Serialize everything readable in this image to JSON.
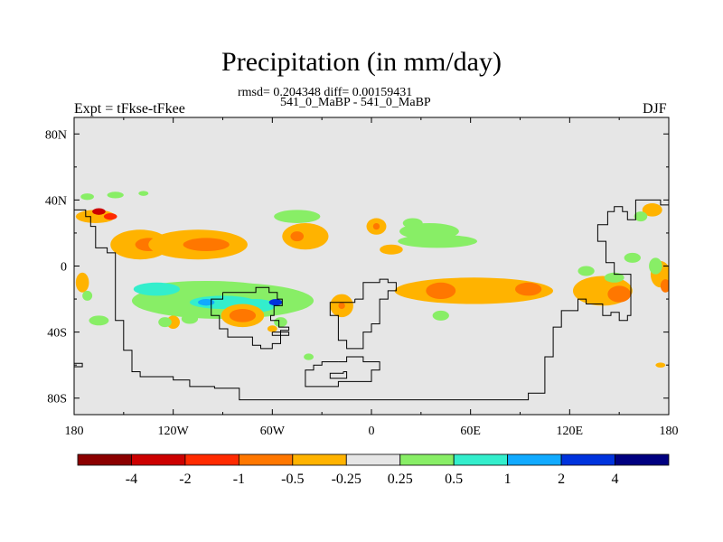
{
  "header": {
    "title": "Precipitation (in mm/day)",
    "subtitle_line1": "rmsd= 0.204348 diff= 0.00159431",
    "subtitle_line2": "541_0_MaBP - 541_0_MaBP",
    "left_label": "Expt = tFkse-tFkee",
    "right_label": "DJF"
  },
  "colors": {
    "background_field": "#e6e6e6",
    "coastline": "#000000",
    "colorbar": [
      "#8b0000",
      "#cc0000",
      "#ff2a00",
      "#ff7700",
      "#ffb300",
      "#e6e6e6",
      "#88ee66",
      "#33eecc",
      "#11aaff",
      "#0033dd",
      "#000080"
    ]
  },
  "chart_data": {
    "type": "heatmap",
    "title": "Precipitation (in mm/day)",
    "projection": "cylindrical equidistant",
    "xlim": [
      -180,
      180
    ],
    "ylim": [
      -90,
      90
    ],
    "x_ticks": [
      {
        "value": -180,
        "label": "180"
      },
      {
        "value": -120,
        "label": "120W"
      },
      {
        "value": -60,
        "label": "60W"
      },
      {
        "value": 0,
        "label": "0"
      },
      {
        "value": 60,
        "label": "60E"
      },
      {
        "value": 120,
        "label": "120E"
      },
      {
        "value": 180,
        "label": "180"
      }
    ],
    "y_ticks": [
      {
        "value": 80,
        "label": "80N"
      },
      {
        "value": 40,
        "label": "40N"
      },
      {
        "value": 0,
        "label": "0"
      },
      {
        "value": -40,
        "label": "40S"
      },
      {
        "value": -80,
        "label": "80S"
      }
    ],
    "colorbar": {
      "levels": [
        -4,
        -2,
        -1,
        -0.5,
        -0.25,
        0.25,
        0.5,
        1,
        2,
        4
      ],
      "labels": [
        "-4",
        "-2",
        "-1",
        "-0.5",
        "-0.25",
        "0.25",
        "0.5",
        "1",
        "2",
        "4"
      ]
    },
    "anomaly_regions": [
      {
        "lon": -140,
        "lat": 13,
        "rx": 18,
        "ry": 9,
        "value": -0.5
      },
      {
        "lon": -135,
        "lat": 13,
        "rx": 8,
        "ry": 4,
        "value": -1
      },
      {
        "lon": -105,
        "lat": 13,
        "rx": 30,
        "ry": 9,
        "value": -0.5
      },
      {
        "lon": -100,
        "lat": 13,
        "rx": 14,
        "ry": 4,
        "value": -1
      },
      {
        "lon": -167,
        "lat": 30,
        "rx": 12,
        "ry": 4,
        "value": -0.5
      },
      {
        "lon": -158,
        "lat": 30,
        "rx": 4,
        "ry": 2,
        "value": -2
      },
      {
        "lon": -165,
        "lat": 33,
        "rx": 4,
        "ry": 2,
        "value": -4
      },
      {
        "lon": -40,
        "lat": 18,
        "rx": 14,
        "ry": 8,
        "value": -0.5
      },
      {
        "lon": -45,
        "lat": 18,
        "rx": 4,
        "ry": 3,
        "value": -1
      },
      {
        "lon": 3,
        "lat": 24,
        "rx": 6,
        "ry": 5,
        "value": -0.5
      },
      {
        "lon": 3,
        "lat": 24,
        "rx": 2,
        "ry": 2,
        "value": -1
      },
      {
        "lon": -90,
        "lat": -21,
        "rx": 55,
        "ry": 11,
        "value": 0.25
      },
      {
        "lon": -100,
        "lat": -15,
        "rx": 40,
        "ry": 6,
        "value": 0.25
      },
      {
        "lon": -130,
        "lat": -14,
        "rx": 14,
        "ry": 4,
        "value": 0.5
      },
      {
        "lon": -90,
        "lat": -22,
        "rx": 20,
        "ry": 4,
        "value": 0.5
      },
      {
        "lon": -70,
        "lat": -24,
        "rx": 12,
        "ry": 4,
        "value": 0.5
      },
      {
        "lon": -100,
        "lat": -22,
        "rx": 5,
        "ry": 2,
        "value": 1
      },
      {
        "lon": -58,
        "lat": -22,
        "rx": 4,
        "ry": 2,
        "value": 2
      },
      {
        "lon": -78,
        "lat": -30,
        "rx": 13,
        "ry": 7,
        "value": -0.5
      },
      {
        "lon": -78,
        "lat": -30,
        "rx": 8,
        "ry": 4,
        "value": -1
      },
      {
        "lon": -120,
        "lat": -34,
        "rx": 4,
        "ry": 4,
        "value": -0.5
      },
      {
        "lon": -175,
        "lat": -10,
        "rx": 4,
        "ry": 6,
        "value": -0.5
      },
      {
        "lon": -172,
        "lat": -18,
        "rx": 3,
        "ry": 3,
        "value": 0.25
      },
      {
        "lon": -165,
        "lat": -33,
        "rx": 6,
        "ry": 3,
        "value": 0.25
      },
      {
        "lon": -125,
        "lat": -34,
        "rx": 4,
        "ry": 3,
        "value": 0.25
      },
      {
        "lon": -110,
        "lat": -32,
        "rx": 5,
        "ry": 3,
        "value": 0.25
      },
      {
        "lon": -55,
        "lat": -34,
        "rx": 4,
        "ry": 3,
        "value": 0.25
      },
      {
        "lon": -60,
        "lat": -38,
        "rx": 3,
        "ry": 2,
        "value": -0.5
      },
      {
        "lon": -18,
        "lat": -24,
        "rx": 7,
        "ry": 7,
        "value": -0.5
      },
      {
        "lon": -18,
        "lat": -24,
        "rx": 2,
        "ry": 2,
        "value": -1
      },
      {
        "lon": -45,
        "lat": 30,
        "rx": 14,
        "ry": 4,
        "value": 0.25
      },
      {
        "lon": 35,
        "lat": 21,
        "rx": 18,
        "ry": 5,
        "value": 0.25
      },
      {
        "lon": 40,
        "lat": 15,
        "rx": 24,
        "ry": 4,
        "value": 0.25
      },
      {
        "lon": 25,
        "lat": 26,
        "rx": 6,
        "ry": 3,
        "value": 0.25
      },
      {
        "lon": -155,
        "lat": 43,
        "rx": 5,
        "ry": 2,
        "value": 0.25
      },
      {
        "lon": -138,
        "lat": 44,
        "rx": 3,
        "ry": 1.5,
        "value": 0.25
      },
      {
        "lon": -172,
        "lat": 42,
        "rx": 4,
        "ry": 2,
        "value": 0.25
      },
      {
        "lon": 62,
        "lat": -15,
        "rx": 48,
        "ry": 8,
        "value": -0.5
      },
      {
        "lon": 42,
        "lat": -15,
        "rx": 9,
        "ry": 5,
        "value": -1
      },
      {
        "lon": 95,
        "lat": -14,
        "rx": 8,
        "ry": 4,
        "value": -1
      },
      {
        "lon": 12,
        "lat": 10,
        "rx": 7,
        "ry": 3,
        "value": -0.5
      },
      {
        "lon": 42,
        "lat": -30,
        "rx": 5,
        "ry": 3,
        "value": 0.25
      },
      {
        "lon": 140,
        "lat": -15,
        "rx": 18,
        "ry": 9,
        "value": -0.5
      },
      {
        "lon": 150,
        "lat": -17,
        "rx": 7,
        "ry": 5,
        "value": -1
      },
      {
        "lon": 147,
        "lat": -7,
        "rx": 6,
        "ry": 3,
        "value": 0.25
      },
      {
        "lon": 175,
        "lat": -5,
        "rx": 6,
        "ry": 8,
        "value": -0.5
      },
      {
        "lon": 172,
        "lat": 0,
        "rx": 4,
        "ry": 5,
        "value": 0.25
      },
      {
        "lon": 178,
        "lat": -12,
        "rx": 3,
        "ry": 4,
        "value": -1
      },
      {
        "lon": 130,
        "lat": -3,
        "rx": 5,
        "ry": 3,
        "value": 0.25
      },
      {
        "lon": 170,
        "lat": 34,
        "rx": 6,
        "ry": 4,
        "value": -0.5
      },
      {
        "lon": 163,
        "lat": 30,
        "rx": 4,
        "ry": 3,
        "value": 0.25
      },
      {
        "lon": 158,
        "lat": 5,
        "rx": 5,
        "ry": 3,
        "value": 0.25
      },
      {
        "lon": -38,
        "lat": -55,
        "rx": 3,
        "ry": 2,
        "value": 0.25
      },
      {
        "lon": 175,
        "lat": -60,
        "rx": 3,
        "ry": 1.5,
        "value": -0.5
      }
    ],
    "coastlines": [
      [
        [
          -180,
          34
        ],
        [
          -173,
          34
        ],
        [
          -173,
          30
        ],
        [
          -170,
          30
        ],
        [
          -170,
          24
        ],
        [
          -167,
          24
        ],
        [
          -167,
          11
        ],
        [
          -160,
          11
        ],
        [
          -160,
          8
        ],
        [
          -155,
          8
        ],
        [
          -155,
          -33
        ],
        [
          -150,
          -33
        ],
        [
          -150,
          -51
        ],
        [
          -145,
          -51
        ],
        [
          -145,
          -64
        ],
        [
          -140,
          -64
        ],
        [
          -140,
          -67
        ],
        [
          -120,
          -67
        ],
        [
          -120,
          -69
        ],
        [
          -110,
          -69
        ],
        [
          -110,
          -73
        ],
        [
          -95,
          -73
        ],
        [
          -95,
          -74
        ],
        [
          -80,
          -74
        ],
        [
          -80,
          -81
        ],
        [
          95,
          -81
        ],
        [
          95,
          -77
        ],
        [
          105,
          -77
        ],
        [
          105,
          -55
        ],
        [
          110,
          -55
        ],
        [
          110,
          -37
        ],
        [
          115,
          -37
        ],
        [
          115,
          -27
        ],
        [
          125,
          -27
        ],
        [
          125,
          -20
        ],
        [
          130,
          -20
        ],
        [
          130,
          -23
        ],
        [
          140,
          -23
        ],
        [
          140,
          -30
        ],
        [
          145,
          -30
        ],
        [
          145,
          -28
        ],
        [
          150,
          -28
        ],
        [
          150,
          -33
        ],
        [
          155,
          -33
        ],
        [
          155,
          -30
        ],
        [
          157,
          -30
        ],
        [
          157,
          -5
        ],
        [
          147,
          -5
        ],
        [
          147,
          2
        ],
        [
          142,
          2
        ],
        [
          142,
          15
        ],
        [
          137,
          15
        ],
        [
          137,
          25
        ],
        [
          143,
          25
        ],
        [
          143,
          33
        ],
        [
          147,
          33
        ],
        [
          147,
          36
        ],
        [
          152,
          36
        ],
        [
          152,
          33
        ],
        [
          155,
          33
        ],
        [
          155,
          28
        ],
        [
          160,
          28
        ],
        [
          160,
          40
        ],
        [
          175,
          40
        ],
        [
          175,
          37
        ],
        [
          180,
          37
        ]
      ],
      [
        [
          -90,
          -16
        ],
        [
          -70,
          -16
        ],
        [
          -70,
          -13
        ],
        [
          -62,
          -13
        ],
        [
          -62,
          -16
        ],
        [
          -57,
          -16
        ],
        [
          -57,
          -20
        ],
        [
          -54,
          -20
        ],
        [
          -54,
          -24
        ],
        [
          -59,
          -24
        ],
        [
          -59,
          -30
        ],
        [
          -61,
          -30
        ],
        [
          -61,
          -33
        ],
        [
          -56,
          -33
        ],
        [
          -56,
          -37
        ],
        [
          -50,
          -37
        ],
        [
          -50,
          -39
        ],
        [
          -55,
          -39
        ],
        [
          -55,
          -47
        ],
        [
          -60,
          -47
        ],
        [
          -60,
          -50
        ],
        [
          -67,
          -50
        ],
        [
          -67,
          -48
        ],
        [
          -72,
          -48
        ],
        [
          -72,
          -43
        ],
        [
          -87,
          -43
        ],
        [
          -87,
          -38
        ],
        [
          -92,
          -38
        ],
        [
          -92,
          -30
        ],
        [
          -97,
          -30
        ],
        [
          -97,
          -20
        ],
        [
          -90,
          -20
        ],
        [
          -90,
          -16
        ]
      ],
      [
        [
          -10,
          -20
        ],
        [
          -5,
          -20
        ],
        [
          -5,
          -10
        ],
        [
          5,
          -10
        ],
        [
          5,
          -8
        ],
        [
          10,
          -8
        ],
        [
          10,
          -10
        ],
        [
          15,
          -10
        ],
        [
          15,
          -15
        ],
        [
          10,
          -15
        ],
        [
          10,
          -20
        ],
        [
          5,
          -20
        ],
        [
          5,
          -35
        ],
        [
          0,
          -35
        ],
        [
          0,
          -40
        ],
        [
          -5,
          -40
        ],
        [
          -5,
          -50
        ],
        [
          -15,
          -50
        ],
        [
          -15,
          -45
        ],
        [
          -20,
          -45
        ],
        [
          -20,
          -30
        ],
        [
          -25,
          -30
        ],
        [
          -25,
          -22
        ],
        [
          -10,
          -22
        ],
        [
          -10,
          -20
        ]
      ],
      [
        [
          -20,
          -58
        ],
        [
          -15,
          -58
        ],
        [
          -15,
          -55
        ],
        [
          -5,
          -55
        ],
        [
          -5,
          -58
        ],
        [
          5,
          -58
        ],
        [
          5,
          -63
        ],
        [
          0,
          -63
        ],
        [
          0,
          -70
        ],
        [
          -20,
          -70
        ],
        [
          -20,
          -73
        ],
        [
          -40,
          -73
        ],
        [
          -40,
          -63
        ],
        [
          -35,
          -63
        ],
        [
          -35,
          -60
        ],
        [
          -30,
          -60
        ],
        [
          -30,
          -58
        ],
        [
          -20,
          -58
        ]
      ],
      [
        [
          -17,
          -64
        ],
        [
          -15,
          -64
        ],
        [
          -15,
          -68
        ],
        [
          -25,
          -68
        ],
        [
          -25,
          -65
        ],
        [
          -17,
          -65
        ],
        [
          -17,
          -64
        ]
      ],
      [
        [
          -60,
          -40
        ],
        [
          -50,
          -40
        ],
        [
          -50,
          -42
        ],
        [
          -60,
          -42
        ],
        [
          -60,
          -40
        ]
      ],
      [
        [
          -180,
          -59
        ],
        [
          -175,
          -59
        ],
        [
          -175,
          -61
        ],
        [
          -180,
          -61
        ]
      ]
    ]
  }
}
